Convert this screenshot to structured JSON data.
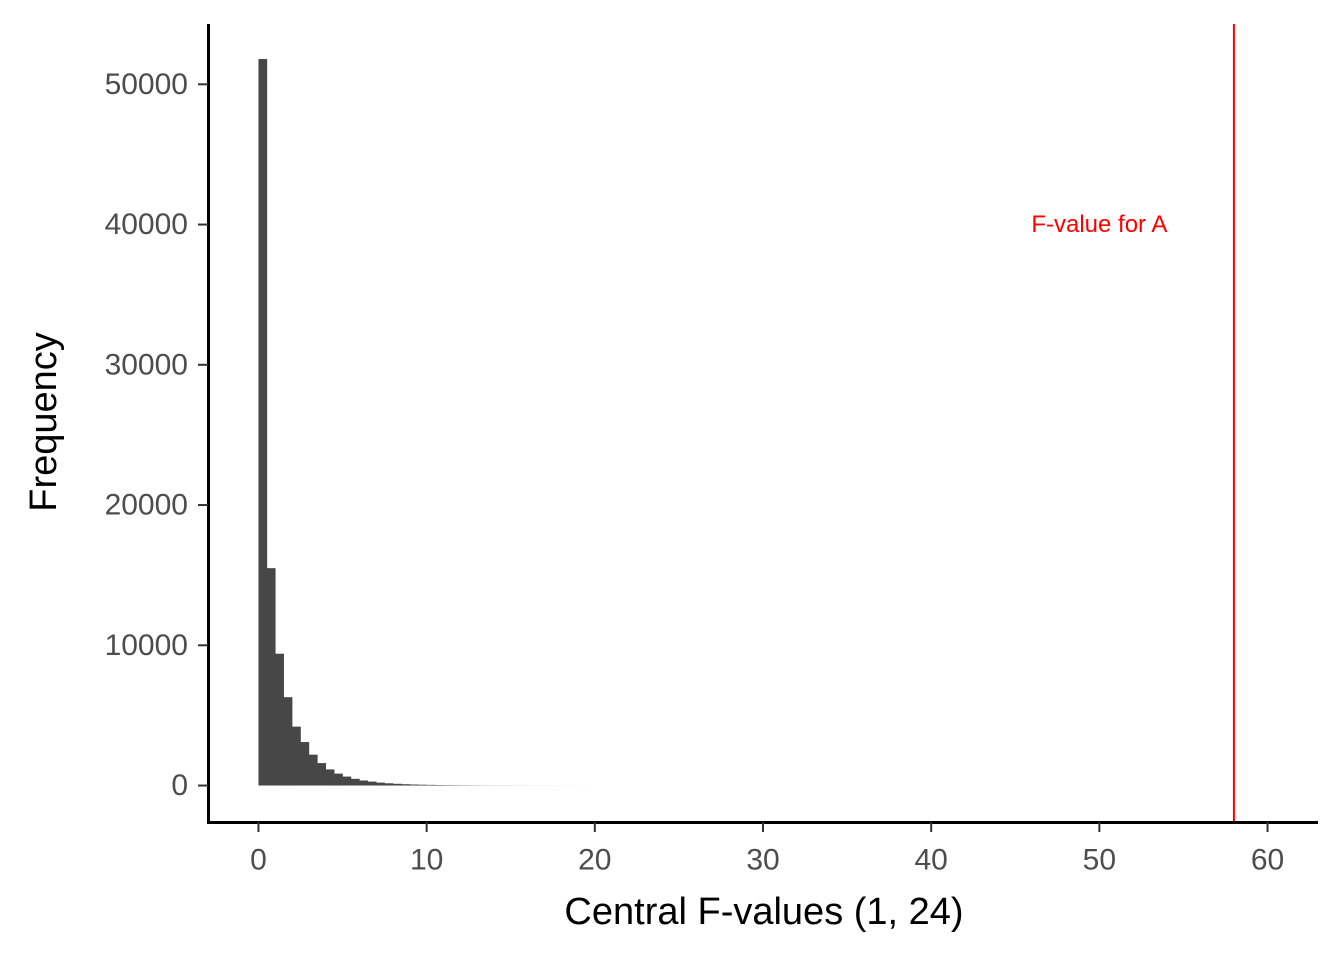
{
  "chart_data": {
    "type": "bar",
    "subtype": "histogram",
    "xlabel": "Central F-values (1, 24)",
    "ylabel": "Frequency",
    "xlim": [
      -3,
      63
    ],
    "ylim": [
      -2600,
      54300
    ],
    "xticks": [
      0,
      10,
      20,
      30,
      40,
      50,
      60
    ],
    "yticks": [
      0,
      10000,
      20000,
      30000,
      40000,
      50000
    ],
    "bin_width": 0.5,
    "bar_color": "#474747",
    "bins": [
      {
        "x0": 0.0,
        "x1": 0.5,
        "count": 51800
      },
      {
        "x0": 0.5,
        "x1": 1.0,
        "count": 15500
      },
      {
        "x0": 1.0,
        "x1": 1.5,
        "count": 9400
      },
      {
        "x0": 1.5,
        "x1": 2.0,
        "count": 6300
      },
      {
        "x0": 2.0,
        "x1": 2.5,
        "count": 4200
      },
      {
        "x0": 2.5,
        "x1": 3.0,
        "count": 3100
      },
      {
        "x0": 3.0,
        "x1": 3.5,
        "count": 2200
      },
      {
        "x0": 3.5,
        "x1": 4.0,
        "count": 1600
      },
      {
        "x0": 4.0,
        "x1": 4.5,
        "count": 1150
      },
      {
        "x0": 4.5,
        "x1": 5.0,
        "count": 850
      },
      {
        "x0": 5.0,
        "x1": 5.5,
        "count": 640
      },
      {
        "x0": 5.5,
        "x1": 6.0,
        "count": 480
      },
      {
        "x0": 6.0,
        "x1": 6.5,
        "count": 360
      },
      {
        "x0": 6.5,
        "x1": 7.0,
        "count": 280
      },
      {
        "x0": 7.0,
        "x1": 7.5,
        "count": 210
      },
      {
        "x0": 7.5,
        "x1": 8.0,
        "count": 160
      },
      {
        "x0": 8.0,
        "x1": 8.5,
        "count": 125
      },
      {
        "x0": 8.5,
        "x1": 9.0,
        "count": 95
      },
      {
        "x0": 9.0,
        "x1": 9.5,
        "count": 75
      },
      {
        "x0": 9.5,
        "x1": 10.0,
        "count": 60
      },
      {
        "x0": 10.0,
        "x1": 10.5,
        "count": 48
      },
      {
        "x0": 10.5,
        "x1": 11.0,
        "count": 38
      },
      {
        "x0": 11.0,
        "x1": 11.5,
        "count": 30
      },
      {
        "x0": 11.5,
        "x1": 12.0,
        "count": 24
      },
      {
        "x0": 12.0,
        "x1": 12.5,
        "count": 19
      },
      {
        "x0": 12.5,
        "x1": 13.0,
        "count": 15
      },
      {
        "x0": 13.0,
        "x1": 13.5,
        "count": 12
      },
      {
        "x0": 13.5,
        "x1": 14.0,
        "count": 10
      },
      {
        "x0": 14.0,
        "x1": 14.5,
        "count": 8
      },
      {
        "x0": 14.5,
        "x1": 15.0,
        "count": 7
      },
      {
        "x0": 15.0,
        "x1": 15.5,
        "count": 6
      },
      {
        "x0": 15.5,
        "x1": 16.0,
        "count": 5
      },
      {
        "x0": 16.0,
        "x1": 16.5,
        "count": 4
      },
      {
        "x0": 16.5,
        "x1": 17.0,
        "count": 3
      },
      {
        "x0": 17.0,
        "x1": 17.5,
        "count": 3
      },
      {
        "x0": 17.5,
        "x1": 18.0,
        "count": 2
      },
      {
        "x0": 18.0,
        "x1": 18.5,
        "count": 2
      },
      {
        "x0": 18.5,
        "x1": 19.0,
        "count": 2
      },
      {
        "x0": 19.0,
        "x1": 19.5,
        "count": 1
      },
      {
        "x0": 19.5,
        "x1": 20.0,
        "count": 1
      }
    ],
    "reference_line": {
      "x": 58,
      "color": "#ff0000",
      "label": "F-value for A",
      "label_x": 50,
      "label_y": 40000
    },
    "grid": false,
    "legend": "none"
  }
}
